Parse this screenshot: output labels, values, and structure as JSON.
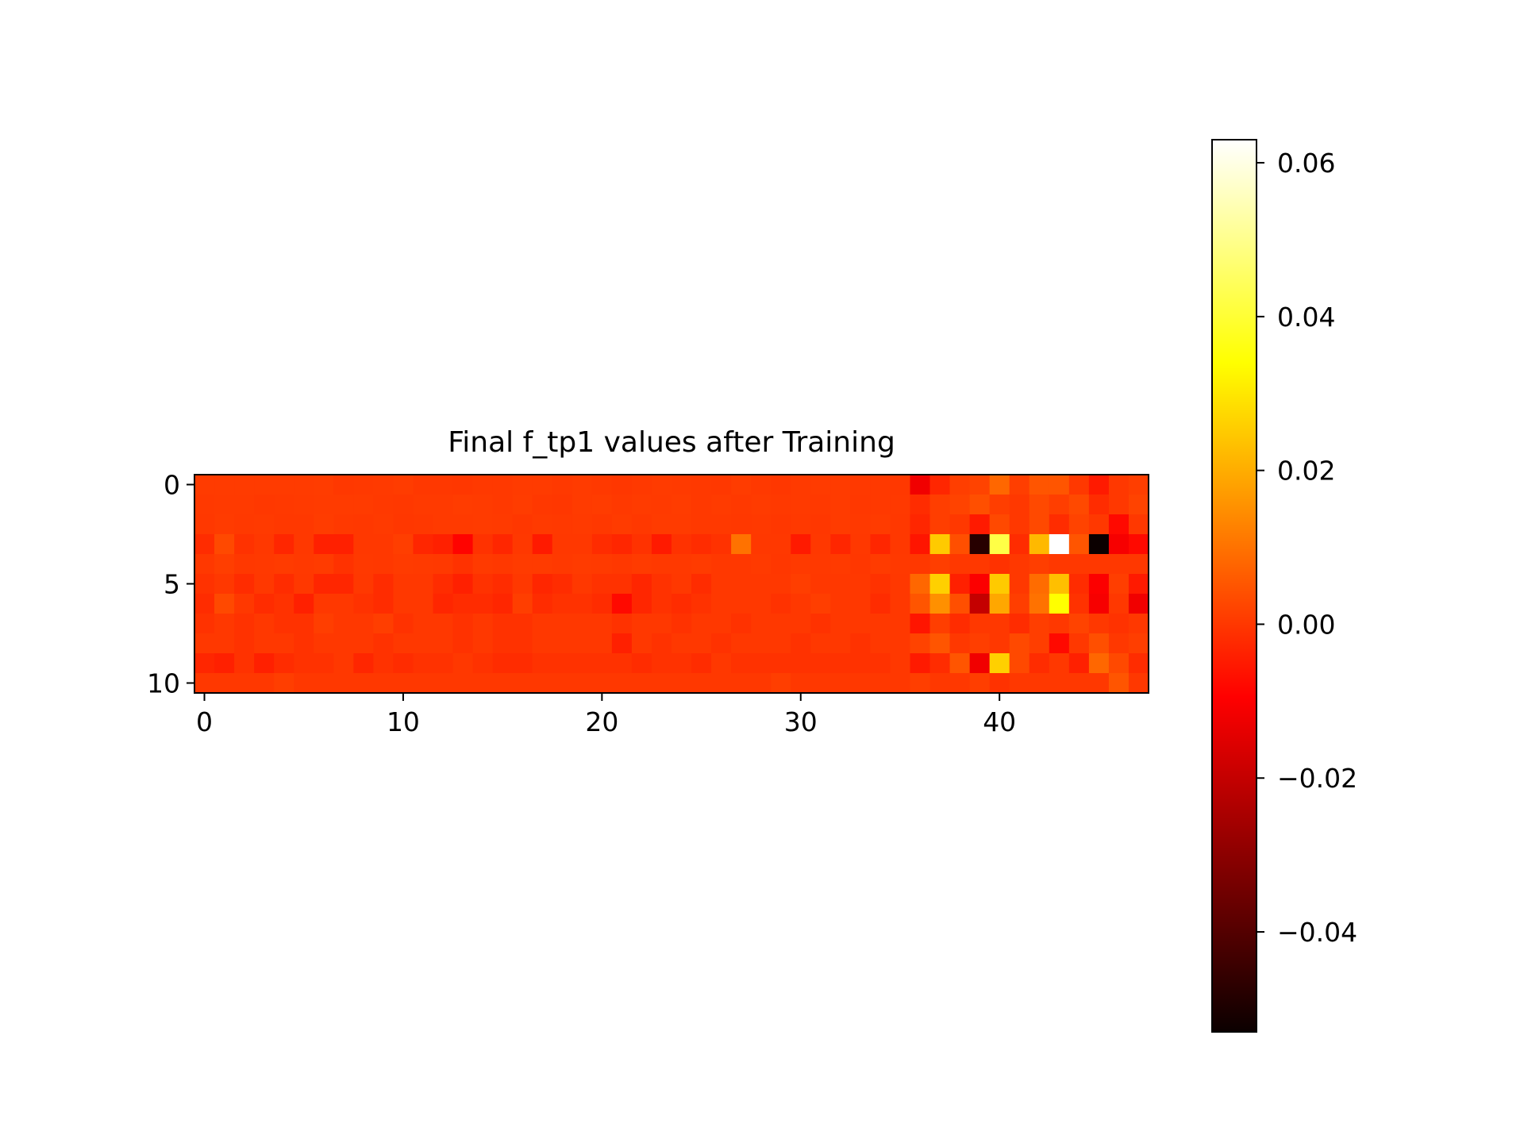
{
  "chart_data": {
    "type": "heatmap",
    "title": "Final f_tp1 values after Training",
    "colormap": "hot",
    "rows": 11,
    "cols": 48,
    "x_ticks": [
      "0",
      "10",
      "20",
      "30",
      "40"
    ],
    "x_tick_values": [
      0,
      10,
      20,
      30,
      40
    ],
    "y_ticks": [
      "0",
      "5",
      "10"
    ],
    "y_tick_values": [
      0,
      5,
      10
    ],
    "colorbar": {
      "vmin": -0.053,
      "vmax": 0.063,
      "ticks": [
        "−0.04",
        "−0.02",
        "0.00",
        "0.02",
        "0.04",
        "0.06"
      ],
      "tick_values": [
        -0.04,
        -0.02,
        0.0,
        0.02,
        0.04,
        0.06
      ]
    },
    "values": [
      [
        0.0005,
        0.0005,
        0.0005,
        0.0005,
        0.0005,
        0.0005,
        0.0008,
        0.0,
        0.0003,
        0.0004,
        0.0007,
        0.0001,
        0.0001,
        -0.0002,
        0.0003,
        0.0003,
        0.0006,
        0.0006,
        0.0002,
        0.0006,
        0.0003,
        -0.0001,
        0.0003,
        0.0006,
        0.0004,
        0.0003,
        0.0001,
        0.0007,
        0.0003,
        -0.0002,
        0.0004,
        0.0005,
        0.0005,
        0.0003,
        0.0003,
        0.0001,
        -0.012,
        -0.003,
        0.001,
        0.002,
        0.008,
        0.001,
        0.005,
        0.005,
        0.0,
        -0.005,
        0.0,
        0.001
      ],
      [
        0.0002,
        0.0004,
        0.0004,
        0.0001,
        0.0002,
        0.0004,
        0.0006,
        0.0006,
        0.0006,
        0.0003,
        0.0001,
        0.0004,
        0.0004,
        0.0007,
        0.0006,
        0.0003,
        0.0008,
        0.0001,
        -0.0002,
        0.0006,
        0.0007,
        0.0003,
        0.0006,
        0.0004,
        0.0007,
        0.0003,
        0.0005,
        0.0003,
        0.0006,
        0.0003,
        0.0004,
        0.0003,
        0.0006,
        0.0001,
        0.0003,
        0.0002,
        -0.002,
        0.001,
        0.002,
        0.004,
        0.001,
        0.0,
        0.003,
        0.001,
        0.003,
        -0.002,
        0.0,
        0.002
      ],
      [
        0.0001,
        0.0005,
        0.0003,
        0.0004,
        0.0,
        0.0001,
        0.0008,
        0.0002,
        0.0,
        0.0004,
        -0.0002,
        0.0001,
        0.0004,
        0.0004,
        0.0006,
        0.0004,
        -0.0002,
        0.0004,
        0.0002,
        0.0004,
        0.0,
        0.0006,
        0.0001,
        0.0006,
        0.0005,
        0.0003,
        0.0003,
        0.0001,
        0.0003,
        -0.0001,
        0.0003,
        -0.0001,
        0.0005,
        0.0003,
        0.0005,
        0.0,
        -0.003,
        0.001,
        0.0,
        -0.005,
        0.003,
        0.0,
        0.003,
        -0.002,
        0.002,
        0.0,
        -0.008,
        0.0
      ],
      [
        -0.002,
        0.003,
        -0.001,
        0.0,
        -0.003,
        0.0,
        -0.004,
        -0.004,
        0.0,
        0.0,
        0.001,
        -0.003,
        -0.004,
        -0.009,
        -0.001,
        -0.003,
        0.0,
        -0.005,
        0.0,
        0.0,
        -0.002,
        -0.003,
        -0.001,
        -0.005,
        -0.001,
        -0.002,
        -0.001,
        0.01,
        0.0,
        0.0,
        -0.005,
        0.0,
        -0.003,
        0.0,
        -0.003,
        0.0,
        -0.006,
        0.025,
        0.004,
        -0.048,
        0.042,
        -0.002,
        0.022,
        0.063,
        0.005,
        -0.053,
        -0.011,
        -0.008
      ],
      [
        0.0,
        0.001,
        0.0,
        0.0003,
        0.0005,
        0.0002,
        0.0006,
        -0.001,
        0.0003,
        0.0001,
        0.0005,
        0.0004,
        0.0003,
        -0.001,
        0.0004,
        0.0,
        0.0005,
        0.0006,
        0.0002,
        0.0006,
        0.0004,
        0.0001,
        0.0005,
        0.0003,
        0.0002,
        0.0006,
        0.0001,
        0.0001,
        0.0004,
        -0.0002,
        0.0004,
        0.0003,
        0.0004,
        -0.0001,
        0.0005,
        0.0003,
        0.0,
        0.001,
        0.0,
        0.0,
        -0.001,
        0.0,
        0.001,
        0.0,
        0.0,
        0.0,
        0.0,
        0.0
      ],
      [
        -0.001,
        0.0,
        -0.002,
        0.0,
        -0.002,
        0.0,
        -0.003,
        -0.003,
        0.0,
        -0.002,
        0.0,
        0.0,
        -0.002,
        -0.004,
        -0.001,
        -0.002,
        0.0,
        -0.003,
        -0.002,
        0.0,
        -0.001,
        -0.001,
        -0.003,
        -0.001,
        0.0,
        -0.002,
        0.0,
        0.0,
        0.0,
        0.0,
        0.001,
        0.0,
        0.0,
        0.0,
        -0.001,
        0.0,
        0.008,
        0.026,
        -0.004,
        -0.01,
        0.025,
        0.0,
        0.009,
        0.023,
        -0.002,
        -0.01,
        0.001,
        -0.005
      ],
      [
        -0.002,
        0.003,
        0.0,
        -0.002,
        -0.001,
        -0.004,
        0.0,
        0.0,
        -0.001,
        -0.002,
        0.0,
        0.0,
        -0.003,
        -0.002,
        -0.002,
        -0.003,
        0.001,
        -0.002,
        -0.001,
        -0.001,
        -0.002,
        -0.008,
        -0.003,
        -0.001,
        -0.002,
        -0.001,
        0.0,
        0.0,
        0.0,
        -0.001,
        0.0,
        0.001,
        0.0,
        0.0,
        -0.002,
        0.0,
        0.005,
        0.015,
        0.004,
        -0.02,
        0.019,
        0.001,
        0.01,
        0.034,
        -0.001,
        -0.011,
        0.0,
        -0.012
      ],
      [
        -0.001,
        0.0,
        -0.001,
        0.0,
        -0.001,
        -0.001,
        0.001,
        0.0,
        0.0,
        0.001,
        -0.001,
        0.0,
        0.0,
        -0.001,
        0.0,
        -0.001,
        -0.001,
        0.0,
        0.0,
        0.0,
        0.0,
        -0.001,
        0.0,
        0.0,
        -0.001,
        0.0,
        0.0,
        -0.001,
        0.0,
        0.0,
        0.0,
        -0.001,
        0.0,
        0.0,
        0.0,
        0.0,
        -0.006,
        0.001,
        -0.002,
        0.0,
        0.0,
        -0.002,
        0.001,
        0.0,
        0.002,
        0.0,
        -0.001,
        0.0
      ],
      [
        0.0,
        0.0,
        -0.001,
        0.0,
        0.0,
        -0.001,
        0.0,
        0.0,
        0.0,
        -0.001,
        0.0,
        0.0,
        0.0,
        -0.001,
        0.0,
        -0.001,
        -0.001,
        0.0,
        0.0,
        0.0,
        0.0,
        -0.004,
        0.0,
        -0.001,
        0.0,
        0.0,
        -0.001,
        0.0,
        0.0,
        0.0,
        -0.001,
        0.0,
        0.0,
        -0.001,
        0.0,
        0.0,
        0.002,
        0.005,
        0.0,
        0.001,
        0.0,
        0.003,
        0.001,
        -0.008,
        0.0,
        0.004,
        0.0,
        0.001
      ],
      [
        -0.003,
        -0.004,
        -0.001,
        -0.004,
        -0.002,
        -0.001,
        -0.001,
        0.0,
        -0.003,
        -0.001,
        -0.002,
        -0.001,
        -0.001,
        0.0,
        -0.001,
        -0.002,
        -0.002,
        -0.001,
        -0.001,
        -0.001,
        -0.001,
        -0.001,
        -0.002,
        -0.001,
        -0.001,
        -0.002,
        0.0,
        -0.001,
        -0.001,
        -0.001,
        -0.001,
        -0.001,
        -0.001,
        -0.001,
        -0.001,
        0.0,
        -0.005,
        -0.002,
        0.005,
        -0.012,
        0.026,
        0.003,
        -0.002,
        0.0,
        -0.004,
        0.008,
        0.003,
        -0.002
      ],
      [
        0.0,
        0.0,
        0.0,
        0.0,
        0.001,
        0.0,
        0.0,
        0.0,
        0.0,
        0.0,
        0.0,
        0.0,
        0.0,
        0.0,
        0.0,
        0.0,
        0.0,
        0.0,
        0.0,
        0.0,
        0.0,
        0.0,
        0.0,
        0.0,
        0.0,
        0.0,
        0.0,
        0.0,
        0.0,
        0.001,
        0.0,
        0.0,
        0.0,
        0.0,
        0.0,
        0.0,
        0.001,
        0.0,
        0.0,
        0.001,
        -0.001,
        0.0,
        0.0,
        0.0,
        0.0,
        0.0,
        0.005,
        0.0
      ]
    ]
  }
}
